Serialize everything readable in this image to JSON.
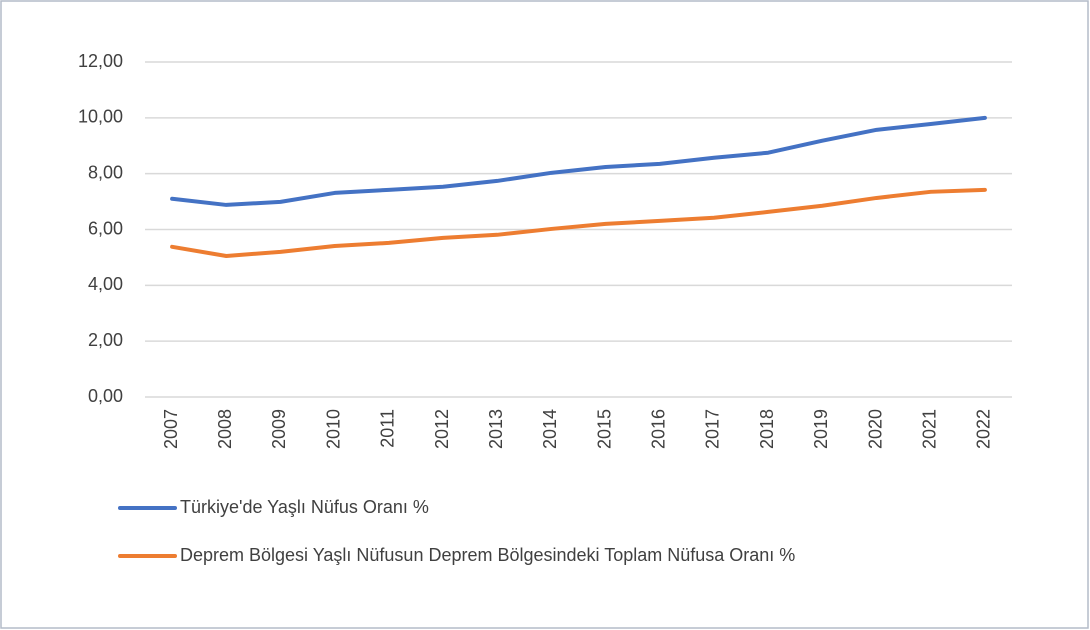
{
  "chart_data": {
    "type": "line",
    "categories": [
      "2007",
      "2008",
      "2009",
      "2010",
      "2011",
      "2012",
      "2013",
      "2014",
      "2015",
      "2016",
      "2017",
      "2018",
      "2019",
      "2020",
      "2021",
      "2022"
    ],
    "series": [
      {
        "name": "Türkiye'de Yaşlı Nüfus Oranı %",
        "color": "#4472c4",
        "values": [
          7.1,
          6.88,
          6.99,
          7.31,
          7.42,
          7.53,
          7.74,
          8.03,
          8.24,
          8.35,
          8.57,
          8.75,
          9.18,
          9.57,
          9.78,
          10.0
        ]
      },
      {
        "name": "Deprem Bölgesi Yaşlı Nüfusun Deprem Bölgesindeki Toplam Nüfusa Oranı %",
        "color": "#ed7d31",
        "values": [
          5.38,
          5.05,
          5.2,
          5.41,
          5.52,
          5.7,
          5.81,
          6.02,
          6.2,
          6.31,
          6.42,
          6.63,
          6.85,
          7.13,
          7.35,
          7.42
        ]
      }
    ],
    "ylim": [
      0,
      12
    ],
    "yticks": [
      {
        "value": 0,
        "label": "0,00"
      },
      {
        "value": 2,
        "label": "2,00"
      },
      {
        "value": 4,
        "label": "4,00"
      },
      {
        "value": 6,
        "label": "6,00"
      },
      {
        "value": 8,
        "label": "8,00"
      },
      {
        "value": 10,
        "label": "10,00"
      },
      {
        "value": 12,
        "label": "12,00"
      }
    ],
    "grid": true
  }
}
